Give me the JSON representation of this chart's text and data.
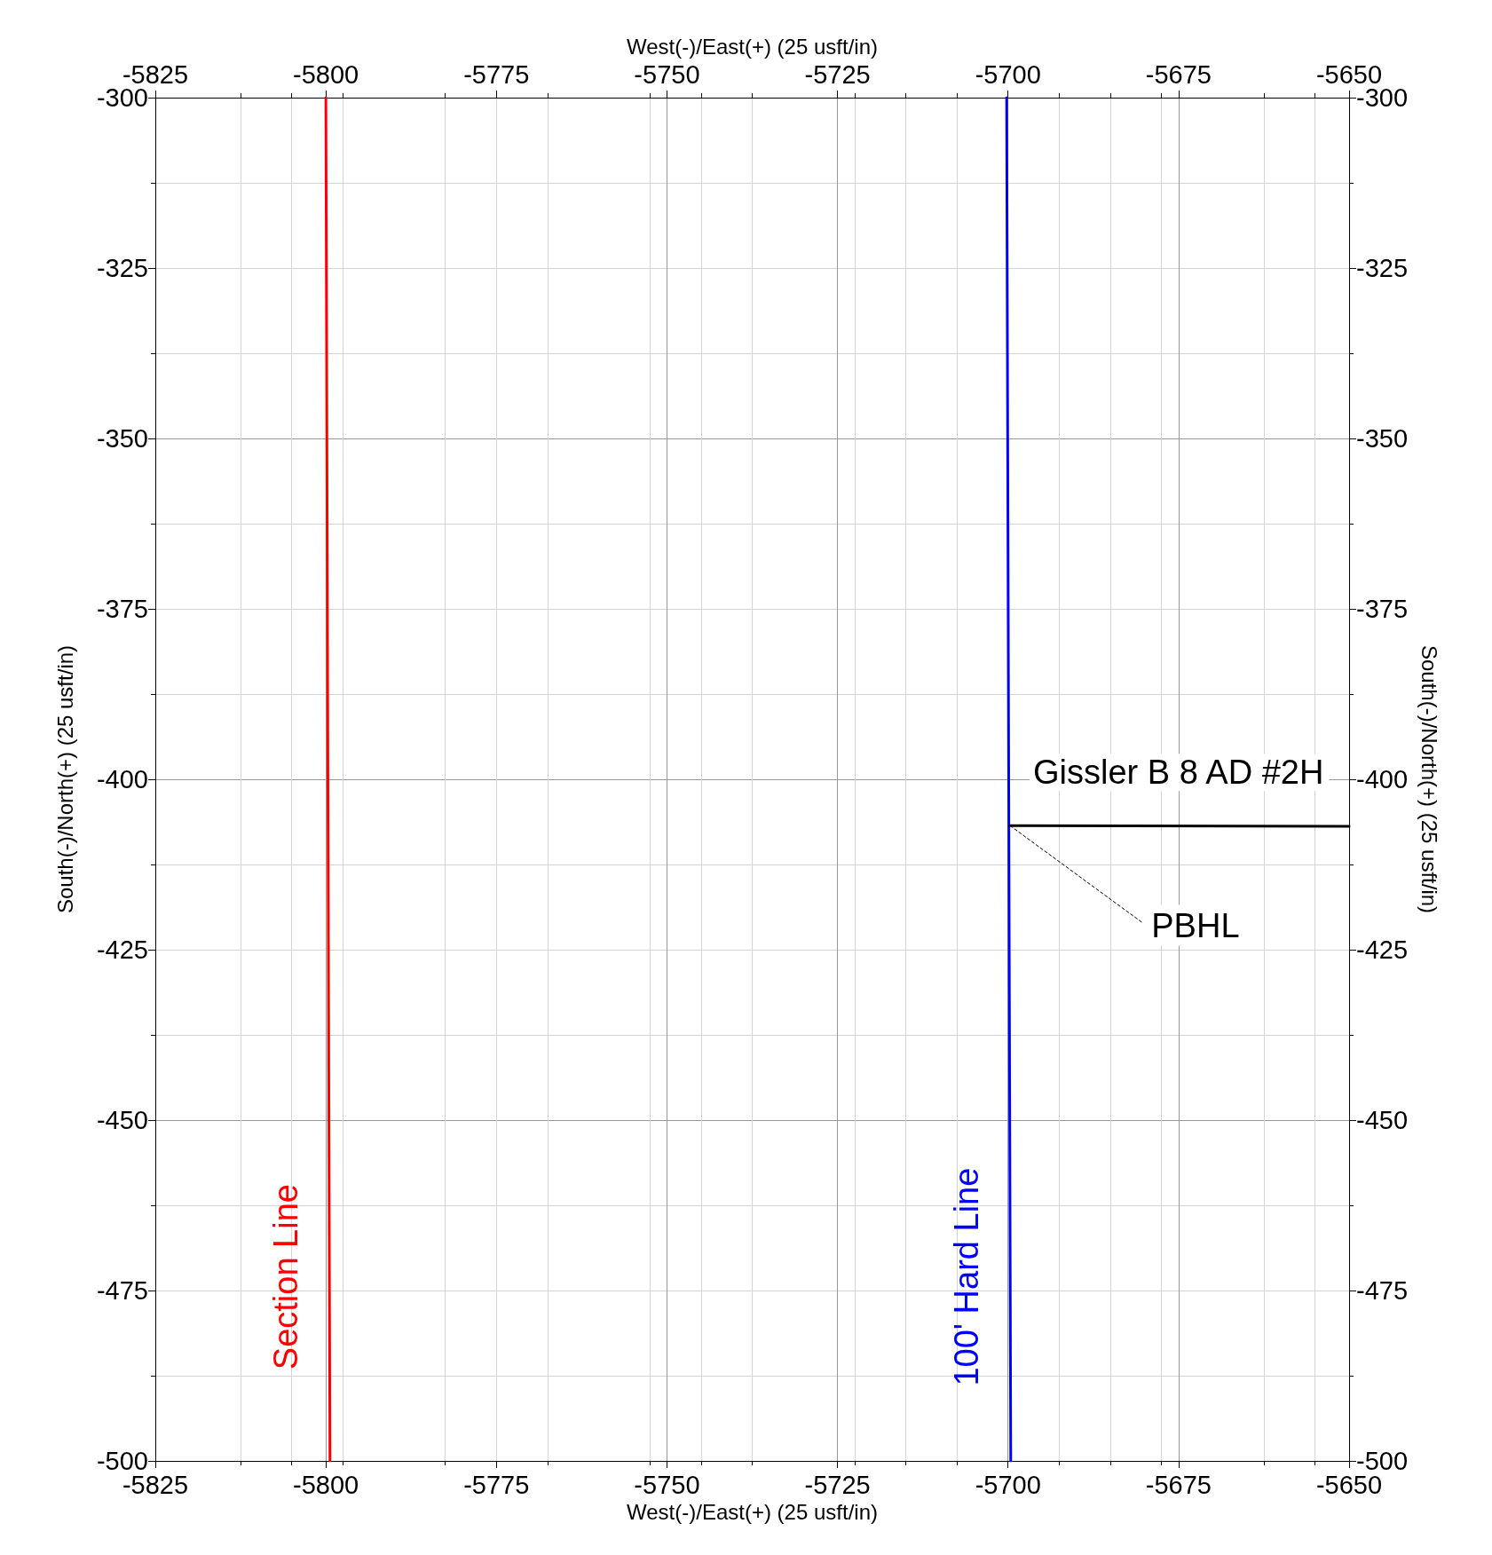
{
  "chart_data": {
    "type": "line",
    "xlabel": "West(-)/East(+) (25 usft/in)",
    "x2label": "West(-)/East(+) (25 usft/in)",
    "ylabel": "South(-)/North(+) (25 usft/in)",
    "y2label": "South(-)/North(+) (25 usft/in)",
    "xlim": [
      -5825,
      -5650
    ],
    "xticks": [
      -5825,
      -5800,
      -5775,
      -5750,
      -5725,
      -5700,
      -5675,
      -5650
    ],
    "x2lim": [
      -5825,
      -5650
    ],
    "x2ticks": [
      -5825,
      -5800,
      -5775,
      -5750,
      -5725,
      -5700,
      -5675,
      -5650
    ],
    "ylim": [
      -500,
      -300
    ],
    "yticks": [
      -500,
      -475,
      -450,
      -425,
      -400,
      -375,
      -350,
      -325,
      -300
    ],
    "y2lim": [
      -500,
      -300
    ],
    "y2ticks": [
      -500,
      -475,
      -450,
      -425,
      -400,
      -375,
      -350,
      -325,
      -300
    ],
    "grid": true,
    "marker": "none",
    "line_style": "solid",
    "series": [
      {
        "name": "Section Line",
        "color": "#ff0000",
        "x": [
          -5800,
          -5799.4
        ],
        "values": [
          -300,
          -500
        ]
      },
      {
        "name": "100' Hard Line",
        "color": "#0000ff",
        "x": [
          -5700.2,
          -5699.6
        ],
        "values": [
          -300,
          -500
        ]
      },
      {
        "name": "Gissler B 8 AD #2H",
        "color": "#000000",
        "x": [
          -5699.7,
          -5650
        ],
        "values": [
          -406.8,
          -406.9
        ]
      }
    ],
    "annotations": [
      {
        "text": "PBHL",
        "x": -5699.7,
        "y": -406.8
      }
    ]
  }
}
